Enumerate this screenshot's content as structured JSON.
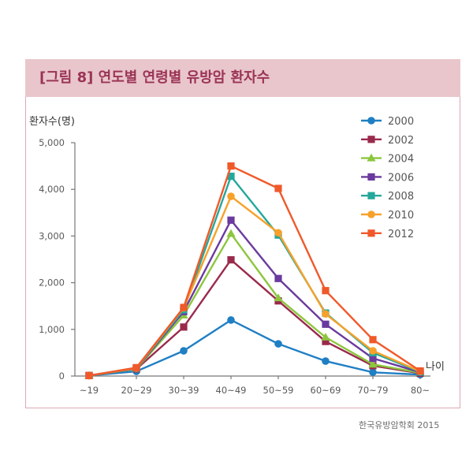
{
  "source": "한국유방암학회 2015",
  "colors": {
    "header_fill": "#e9c6cc",
    "title_text": "#9b3456",
    "frame_border": "#dca9b3"
  },
  "chart_data": {
    "type": "line",
    "title": "[그림 8] 연도별 연령별 유방암 환자수",
    "xlabel": "나이",
    "ylabel": "환자수(명)",
    "categories": [
      "~19",
      "20~29",
      "30~39",
      "40~49",
      "50~59",
      "60~69",
      "70~79",
      "80~"
    ],
    "ylim": [
      0,
      5000
    ],
    "yticks": [
      {
        "value": 0,
        "label": "0"
      },
      {
        "value": 1000,
        "label": "1,000"
      },
      {
        "value": 2000,
        "label": "2,000"
      },
      {
        "value": 3000,
        "label": "3,000"
      },
      {
        "value": 4000,
        "label": "4,000"
      },
      {
        "value": 5000,
        "label": "5,000"
      }
    ],
    "grid": false,
    "legend": "top-right",
    "series": [
      {
        "name": "2000",
        "color": "#1f7fc4",
        "marker": "circle",
        "values": [
          10,
          100,
          540,
          1200,
          690,
          320,
          80,
          30
        ]
      },
      {
        "name": "2002",
        "color": "#9a2a4c",
        "marker": "square",
        "values": [
          10,
          150,
          1050,
          2490,
          1610,
          740,
          220,
          60
        ]
      },
      {
        "name": "2004",
        "color": "#8cc63e",
        "marker": "triangle",
        "values": [
          10,
          150,
          1300,
          3050,
          1670,
          830,
          250,
          70
        ]
      },
      {
        "name": "2006",
        "color": "#6a3a9e",
        "marker": "square",
        "values": [
          10,
          160,
          1380,
          3340,
          2090,
          1110,
          380,
          80
        ]
      },
      {
        "name": "2008",
        "color": "#25a89b",
        "marker": "square",
        "values": [
          10,
          170,
          1420,
          4280,
          3020,
          1350,
          500,
          90
        ]
      },
      {
        "name": "2010",
        "color": "#f7a12b",
        "marker": "circle",
        "values": [
          10,
          170,
          1460,
          3850,
          3070,
          1330,
          540,
          100
        ]
      },
      {
        "name": "2012",
        "color": "#f0592a",
        "marker": "square",
        "values": [
          10,
          180,
          1470,
          4500,
          4020,
          1830,
          780,
          110
        ]
      }
    ]
  }
}
